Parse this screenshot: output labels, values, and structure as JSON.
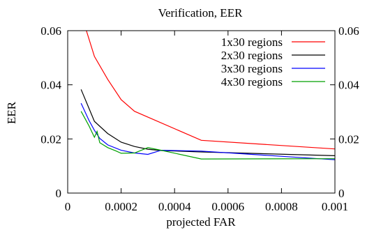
{
  "chart_data": {
    "type": "line",
    "title": "Verification, EER",
    "xlabel": "projected FAR",
    "ylabel": "EER",
    "xlim": [
      0,
      0.001
    ],
    "ylim": [
      0,
      0.06
    ],
    "x_ticks": [
      {
        "value": 0,
        "label": "0"
      },
      {
        "value": 0.0002,
        "label": "0.0002"
      },
      {
        "value": 0.0004,
        "label": "0.0004"
      },
      {
        "value": 0.0006,
        "label": "0.0006"
      },
      {
        "value": 0.0008,
        "label": "0.0008"
      },
      {
        "value": 0.001,
        "label": "0.001"
      }
    ],
    "y_ticks": [
      {
        "value": 0,
        "label": "0"
      },
      {
        "value": 0.02,
        "label": "0.02"
      },
      {
        "value": 0.04,
        "label": "0.04"
      },
      {
        "value": 0.06,
        "label": "0.06"
      }
    ],
    "grid": false,
    "mirror_y_ticks_right": true,
    "legend_position": "top-right",
    "series": [
      {
        "name": "1x30 regions",
        "color": "#ff0000",
        "x": [
          7e-05,
          0.0001,
          0.00015,
          0.0002,
          0.00025,
          0.0005,
          0.001
        ],
        "y": [
          0.06,
          0.0505,
          0.042,
          0.0345,
          0.0302,
          0.0195,
          0.0163
        ]
      },
      {
        "name": "2x30 regions",
        "color": "#000000",
        "x": [
          5e-05,
          0.0001,
          0.00015,
          0.0002,
          0.00025,
          0.0003,
          0.00035,
          0.0005,
          0.001
        ],
        "y": [
          0.0383,
          0.0265,
          0.022,
          0.0188,
          0.0172,
          0.0162,
          0.0157,
          0.0152,
          0.0138
        ]
      },
      {
        "name": "3x30 regions",
        "color": "#0000ff",
        "x": [
          5e-05,
          8e-05,
          0.0001,
          0.00012,
          0.00015,
          0.0002,
          0.00025,
          0.0003,
          0.00035,
          0.0005,
          0.001
        ],
        "y": [
          0.0332,
          0.0268,
          0.0232,
          0.0202,
          0.0178,
          0.0158,
          0.0148,
          0.0143,
          0.0158,
          0.0155,
          0.0123
        ]
      },
      {
        "name": "4x30 regions",
        "color": "#00a000",
        "x": [
          5e-05,
          8e-05,
          0.0001,
          0.00011,
          0.00012,
          0.00015,
          0.00018,
          0.0002,
          0.00025,
          0.0003,
          0.00035,
          0.0005,
          0.001
        ],
        "y": [
          0.0302,
          0.0248,
          0.0206,
          0.0228,
          0.0186,
          0.0168,
          0.0156,
          0.0147,
          0.0148,
          0.0168,
          0.0158,
          0.0126,
          0.0127
        ]
      }
    ]
  }
}
